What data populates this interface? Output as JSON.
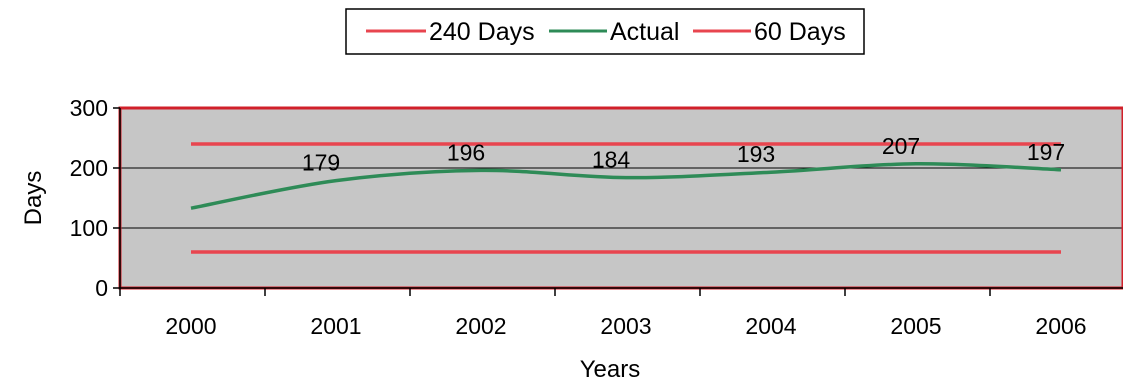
{
  "chart_data": {
    "type": "line",
    "x": [
      "2000",
      "2001",
      "2002",
      "2003",
      "2004",
      "2005",
      "2006"
    ],
    "xlabel": "Years",
    "ylabel": "Days",
    "ylim": [
      0,
      300
    ],
    "yticks": [
      0,
      100,
      200,
      300
    ],
    "grid": true,
    "legend_position": "top-center",
    "series": [
      {
        "name": "240 Days",
        "color": "#e8454f",
        "values": [
          240,
          240,
          240,
          240,
          240,
          240,
          240
        ]
      },
      {
        "name": "Actual",
        "color": "#2e8b57",
        "values": [
          133,
          179,
          196,
          184,
          193,
          207,
          197
        ],
        "data_labels": [
          null,
          "179",
          "196",
          "184",
          "193",
          "207",
          "197"
        ]
      },
      {
        "name": "60 Days",
        "color": "#e8454f",
        "values": [
          60,
          60,
          60,
          60,
          60,
          60,
          60
        ]
      }
    ],
    "plot_background": "#c6c6c6",
    "plot_border": "#d1202a"
  }
}
